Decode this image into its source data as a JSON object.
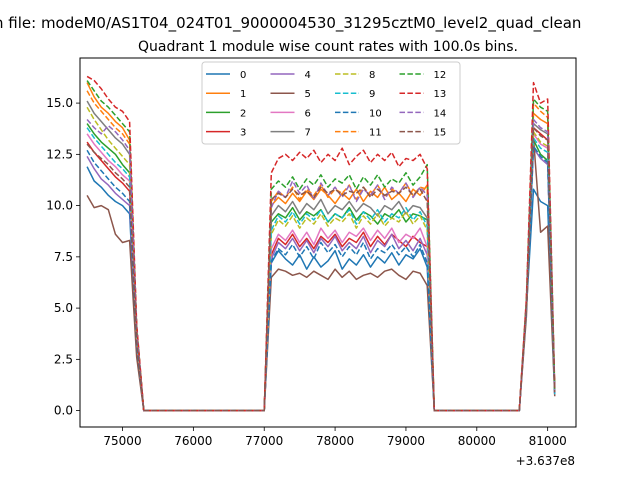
{
  "chart_data": {
    "type": "line",
    "suptitle": "n file: modeM0/AS1T04_024T01_9000004530_31295cztM0_level2_quad_clean",
    "title": "Quadrant 1 module wise count rates with 100.0s bins.",
    "xlabel": "",
    "ylabel": "",
    "x_offset_label": "+3.637e8",
    "xlim": [
      74400,
      81400
    ],
    "ylim": [
      -0.8,
      17.2
    ],
    "xticks": [
      75000,
      76000,
      77000,
      78000,
      79000,
      80000,
      81000
    ],
    "xtick_labels": [
      "75000",
      "76000",
      "77000",
      "78000",
      "79000",
      "80000",
      "81000"
    ],
    "yticks": [
      0.0,
      2.5,
      5.0,
      7.5,
      10.0,
      12.5,
      15.0
    ],
    "ytick_labels": [
      "0.0",
      "2.5",
      "5.0",
      "7.5",
      "10.0",
      "12.5",
      "15.0"
    ],
    "legend_position": "upper-center",
    "x": [
      74500,
      74600,
      74700,
      74800,
      74900,
      75000,
      75100,
      75200,
      75300,
      75400,
      75500,
      75600,
      75700,
      75800,
      75900,
      76000,
      76100,
      76200,
      76300,
      76400,
      76500,
      76600,
      76700,
      76800,
      76900,
      77000,
      77100,
      77200,
      77300,
      77400,
      77500,
      77600,
      77700,
      77800,
      77900,
      78000,
      78100,
      78200,
      78300,
      78400,
      78500,
      78600,
      78700,
      78800,
      78900,
      79000,
      79100,
      79200,
      79300,
      79400,
      79500,
      79600,
      79700,
      79800,
      79900,
      80000,
      80100,
      80200,
      80300,
      80400,
      80500,
      80600,
      80700,
      80800,
      80900,
      81000,
      81100
    ],
    "series": [
      {
        "name": "0",
        "color": "#1f77b4",
        "dashed": false,
        "values": [
          11.9,
          11.2,
          10.9,
          10.5,
          10.2,
          10.0,
          9.6,
          3.0,
          0,
          0,
          0,
          0,
          0,
          0,
          0,
          0,
          0,
          0,
          0,
          0,
          0,
          0,
          0,
          0,
          0,
          0,
          7.2,
          7.8,
          7.4,
          7.1,
          7.6,
          6.9,
          7.5,
          7.0,
          7.3,
          7.8,
          6.9,
          7.4,
          7.1,
          7.6,
          7.0,
          7.5,
          7.2,
          7.7,
          7.1,
          7.6,
          7.4,
          7.9,
          7.0,
          0,
          0,
          0,
          0,
          0,
          0,
          0,
          0,
          0,
          0,
          0,
          0,
          0,
          5.0,
          10.8,
          10.2,
          10.0,
          0.8
        ]
      },
      {
        "name": "1",
        "color": "#ff7f0e",
        "dashed": false,
        "values": [
          16.0,
          15.3,
          14.8,
          14.5,
          14.1,
          13.8,
          13.2,
          4.0,
          0,
          0,
          0,
          0,
          0,
          0,
          0,
          0,
          0,
          0,
          0,
          0,
          0,
          0,
          0,
          0,
          0,
          0,
          10.0,
          10.4,
          10.1,
          10.6,
          10.2,
          10.7,
          10.3,
          10.8,
          10.5,
          10.1,
          10.6,
          10.3,
          10.8,
          10.2,
          10.7,
          10.4,
          10.9,
          10.3,
          10.6,
          10.2,
          10.8,
          10.5,
          11.0,
          0,
          0,
          0,
          0,
          0,
          0,
          0,
          0,
          0,
          0,
          0,
          0,
          0,
          5.3,
          14.5,
          14.2,
          14.0,
          1.0
        ]
      },
      {
        "name": "2",
        "color": "#2ca02c",
        "dashed": false,
        "values": [
          14.0,
          13.5,
          13.1,
          12.8,
          12.5,
          12.0,
          11.6,
          3.6,
          0,
          0,
          0,
          0,
          0,
          0,
          0,
          0,
          0,
          0,
          0,
          0,
          0,
          0,
          0,
          0,
          0,
          0,
          9.2,
          9.6,
          9.4,
          9.9,
          9.3,
          9.7,
          9.5,
          9.8,
          9.2,
          9.6,
          9.4,
          9.9,
          9.3,
          9.7,
          9.5,
          9.1,
          9.6,
          9.4,
          9.8,
          9.2,
          9.6,
          9.5,
          9.3,
          0,
          0,
          0,
          0,
          0,
          0,
          0,
          0,
          0,
          0,
          0,
          0,
          0,
          5.1,
          13.2,
          12.5,
          12.2,
          0.9
        ]
      },
      {
        "name": "3",
        "color": "#d62728",
        "dashed": false,
        "values": [
          13.1,
          12.6,
          12.2,
          11.8,
          11.4,
          11.1,
          10.7,
          3.3,
          0,
          0,
          0,
          0,
          0,
          0,
          0,
          0,
          0,
          0,
          0,
          0,
          0,
          0,
          0,
          0,
          0,
          0,
          7.6,
          8.4,
          8.1,
          8.6,
          8.0,
          8.4,
          7.9,
          8.5,
          8.2,
          8.6,
          8.0,
          8.4,
          8.2,
          8.7,
          8.0,
          8.5,
          8.1,
          8.6,
          8.3,
          8.0,
          8.5,
          8.2,
          8.0,
          0,
          0,
          0,
          0,
          0,
          0,
          0,
          0,
          0,
          0,
          0,
          0,
          0,
          5.0,
          13.8,
          13.5,
          13.2,
          0.8
        ]
      },
      {
        "name": "4",
        "color": "#9467bd",
        "dashed": false,
        "values": [
          12.4,
          11.8,
          11.3,
          11.0,
          10.6,
          10.3,
          10.0,
          3.1,
          0,
          0,
          0,
          0,
          0,
          0,
          0,
          0,
          0,
          0,
          0,
          0,
          0,
          0,
          0,
          0,
          0,
          0,
          7.4,
          8.2,
          7.9,
          8.4,
          7.8,
          8.3,
          7.7,
          8.4,
          8.0,
          8.5,
          7.8,
          8.2,
          7.9,
          8.5,
          7.7,
          8.3,
          8.0,
          8.6,
          7.9,
          8.3,
          7.8,
          8.4,
          7.6,
          0,
          0,
          0,
          0,
          0,
          0,
          0,
          0,
          0,
          0,
          0,
          0,
          0,
          4.9,
          12.8,
          12.3,
          12.0,
          0.8
        ]
      },
      {
        "name": "5",
        "color": "#8c564b",
        "dashed": false,
        "values": [
          10.5,
          9.9,
          10.0,
          9.8,
          8.6,
          8.2,
          8.3,
          2.6,
          0,
          0,
          0,
          0,
          0,
          0,
          0,
          0,
          0,
          0,
          0,
          0,
          0,
          0,
          0,
          0,
          0,
          0,
          6.5,
          6.9,
          6.8,
          6.6,
          6.7,
          6.5,
          6.8,
          6.6,
          6.4,
          6.9,
          6.5,
          6.8,
          6.4,
          6.6,
          6.7,
          6.5,
          6.8,
          6.9,
          6.6,
          6.4,
          6.8,
          6.7,
          6.1,
          0,
          0,
          0,
          0,
          0,
          0,
          0,
          0,
          0,
          0,
          0,
          0,
          0,
          4.6,
          13.3,
          8.7,
          9.0,
          0.7
        ]
      },
      {
        "name": "6",
        "color": "#e377c2",
        "dashed": false,
        "values": [
          13.5,
          13.0,
          12.6,
          12.2,
          11.9,
          11.5,
          11.2,
          3.5,
          0,
          0,
          0,
          0,
          0,
          0,
          0,
          0,
          0,
          0,
          0,
          0,
          0,
          0,
          0,
          0,
          0,
          0,
          7.9,
          8.6,
          8.3,
          8.8,
          8.2,
          8.7,
          8.1,
          8.9,
          8.4,
          8.8,
          8.2,
          8.7,
          8.5,
          8.9,
          8.3,
          8.8,
          8.4,
          8.9,
          8.2,
          8.6,
          8.4,
          8.9,
          8.0,
          0,
          0,
          0,
          0,
          0,
          0,
          0,
          0,
          0,
          0,
          0,
          0,
          0,
          5.0,
          13.5,
          13.0,
          12.8,
          0.8
        ]
      },
      {
        "name": "7",
        "color": "#7f7f7f",
        "dashed": false,
        "values": [
          15.1,
          14.5,
          14.1,
          13.7,
          13.3,
          13.0,
          12.5,
          3.9,
          0,
          0,
          0,
          0,
          0,
          0,
          0,
          0,
          0,
          0,
          0,
          0,
          0,
          0,
          0,
          0,
          0,
          0,
          9.5,
          10.0,
          9.7,
          10.2,
          9.6,
          10.1,
          9.8,
          10.3,
          9.6,
          10.0,
          9.8,
          10.2,
          9.7,
          10.1,
          9.9,
          9.5,
          10.0,
          9.8,
          10.2,
          9.6,
          10.0,
          9.9,
          9.4,
          0,
          0,
          0,
          0,
          0,
          0,
          0,
          0,
          0,
          0,
          0,
          0,
          0,
          5.2,
          14.0,
          13.7,
          13.5,
          0.9
        ]
      },
      {
        "name": "8",
        "color": "#bcbd22",
        "dashed": true,
        "values": [
          14.8,
          14.2,
          13.7,
          13.2,
          12.8,
          12.4,
          12.0,
          3.7,
          0,
          0,
          0,
          0,
          0,
          0,
          0,
          0,
          0,
          0,
          0,
          0,
          0,
          0,
          0,
          0,
          0,
          0,
          8.6,
          9.3,
          9.0,
          9.5,
          8.9,
          9.4,
          9.1,
          9.6,
          9.0,
          9.4,
          9.2,
          9.6,
          8.9,
          9.5,
          9.1,
          9.6,
          9.0,
          9.4,
          9.2,
          9.7,
          9.1,
          9.5,
          8.8,
          0,
          0,
          0,
          0,
          0,
          0,
          0,
          0,
          0,
          0,
          0,
          0,
          0,
          5.1,
          13.6,
          13.1,
          12.9,
          0.9
        ]
      },
      {
        "name": "9",
        "color": "#17becf",
        "dashed": true,
        "values": [
          13.8,
          13.3,
          12.9,
          12.5,
          12.1,
          11.8,
          11.4,
          3.5,
          0,
          0,
          0,
          0,
          0,
          0,
          0,
          0,
          0,
          0,
          0,
          0,
          0,
          0,
          0,
          0,
          0,
          0,
          8.8,
          9.5,
          9.2,
          9.7,
          9.1,
          9.6,
          9.3,
          9.8,
          9.2,
          9.6,
          9.4,
          9.8,
          9.1,
          9.7,
          9.3,
          9.8,
          9.2,
          9.6,
          9.4,
          9.9,
          9.3,
          9.7,
          9.0,
          0,
          0,
          0,
          0,
          0,
          0,
          0,
          0,
          0,
          0,
          0,
          0,
          0,
          5.0,
          13.3,
          12.8,
          12.6,
          0.8
        ]
      },
      {
        "name": "10",
        "color": "#1f77b4",
        "dashed": true,
        "values": [
          12.7,
          12.1,
          11.7,
          11.3,
          10.9,
          10.6,
          10.2,
          3.2,
          0,
          0,
          0,
          0,
          0,
          0,
          0,
          0,
          0,
          0,
          0,
          0,
          0,
          0,
          0,
          0,
          0,
          0,
          7.3,
          7.9,
          7.6,
          8.1,
          7.5,
          8.0,
          7.4,
          8.2,
          7.7,
          8.1,
          7.5,
          8.0,
          7.6,
          8.2,
          7.4,
          7.9,
          7.7,
          8.1,
          7.6,
          8.0,
          7.5,
          8.1,
          7.2,
          0,
          0,
          0,
          0,
          0,
          0,
          0,
          0,
          0,
          0,
          0,
          0,
          0,
          4.9,
          12.9,
          12.4,
          12.1,
          0.8
        ]
      },
      {
        "name": "11",
        "color": "#ff7f0e",
        "dashed": true,
        "values": [
          15.6,
          15.0,
          14.6,
          14.2,
          13.8,
          13.5,
          13.0,
          4.0,
          0,
          0,
          0,
          0,
          0,
          0,
          0,
          0,
          0,
          0,
          0,
          0,
          0,
          0,
          0,
          0,
          0,
          0,
          10.2,
          10.7,
          10.4,
          10.9,
          10.3,
          10.8,
          10.5,
          11.0,
          10.4,
          10.8,
          10.6,
          11.0,
          10.3,
          10.9,
          10.5,
          11.0,
          10.4,
          10.8,
          10.6,
          11.1,
          10.5,
          10.9,
          10.8,
          0,
          0,
          0,
          0,
          0,
          0,
          0,
          0,
          0,
          0,
          0,
          0,
          0,
          5.3,
          15.0,
          14.6,
          14.3,
          1.0
        ]
      },
      {
        "name": "12",
        "color": "#2ca02c",
        "dashed": true,
        "values": [
          16.1,
          15.6,
          15.1,
          14.8,
          14.4,
          14.0,
          13.6,
          4.1,
          0,
          0,
          0,
          0,
          0,
          0,
          0,
          0,
          0,
          0,
          0,
          0,
          0,
          0,
          0,
          0,
          0,
          0,
          10.8,
          11.2,
          10.9,
          11.4,
          10.8,
          11.3,
          11.0,
          11.5,
          10.9,
          11.3,
          11.1,
          11.5,
          10.8,
          11.4,
          11.0,
          11.5,
          10.9,
          11.3,
          11.1,
          11.6,
          11.0,
          11.4,
          12.0,
          0,
          0,
          0,
          0,
          0,
          0,
          0,
          0,
          0,
          0,
          0,
          0,
          0,
          5.4,
          15.2,
          14.8,
          14.6,
          1.0
        ]
      },
      {
        "name": "13",
        "color": "#d62728",
        "dashed": true,
        "values": [
          16.3,
          16.1,
          15.7,
          15.2,
          14.8,
          14.6,
          14.1,
          4.2,
          0,
          0,
          0,
          0,
          0,
          0,
          0,
          0,
          0,
          0,
          0,
          0,
          0,
          0,
          0,
          0,
          0,
          0,
          11.6,
          12.3,
          12.5,
          12.2,
          12.6,
          12.3,
          12.7,
          12.1,
          12.5,
          12.2,
          12.8,
          12.0,
          12.4,
          12.7,
          12.1,
          12.5,
          12.2,
          12.6,
          11.9,
          12.3,
          12.2,
          12.5,
          11.8,
          0,
          0,
          0,
          0,
          0,
          0,
          0,
          0,
          0,
          0,
          0,
          0,
          0,
          5.5,
          16.0,
          15.0,
          15.2,
          1.1
        ]
      },
      {
        "name": "14",
        "color": "#9467bd",
        "dashed": true,
        "values": [
          14.2,
          13.8,
          13.5,
          13.9,
          13.6,
          13.2,
          12.7,
          3.8,
          0,
          0,
          0,
          0,
          0,
          0,
          0,
          0,
          0,
          0,
          0,
          0,
          0,
          0,
          0,
          0,
          0,
          0,
          9.9,
          10.7,
          10.4,
          11.2,
          10.6,
          11.0,
          10.3,
          11.1,
          10.5,
          10.9,
          10.4,
          11.0,
          10.2,
          10.8,
          10.5,
          11.0,
          10.3,
          10.9,
          10.6,
          11.1,
          10.4,
          10.9,
          10.5,
          0,
          0,
          0,
          0,
          0,
          0,
          0,
          0,
          0,
          0,
          0,
          0,
          0,
          5.1,
          14.2,
          13.8,
          13.6,
          0.9
        ]
      },
      {
        "name": "15",
        "color": "#8c564b",
        "dashed": true,
        "values": [
          13.0,
          12.6,
          12.3,
          12.0,
          11.6,
          11.3,
          10.9,
          3.4,
          0,
          0,
          0,
          0,
          0,
          0,
          0,
          0,
          0,
          0,
          0,
          0,
          0,
          0,
          0,
          0,
          0,
          0,
          10.3,
          10.6,
          10.4,
          10.8,
          10.5,
          10.7,
          10.4,
          10.9,
          10.6,
          10.8,
          10.5,
          10.7,
          10.6,
          10.9,
          10.4,
          10.8,
          10.5,
          10.7,
          10.6,
          10.9,
          10.5,
          10.8,
          10.2,
          0,
          0,
          0,
          0,
          0,
          0,
          0,
          0,
          0,
          0,
          0,
          0,
          0,
          5.0,
          13.8,
          13.4,
          13.2,
          0.9
        ]
      }
    ]
  }
}
